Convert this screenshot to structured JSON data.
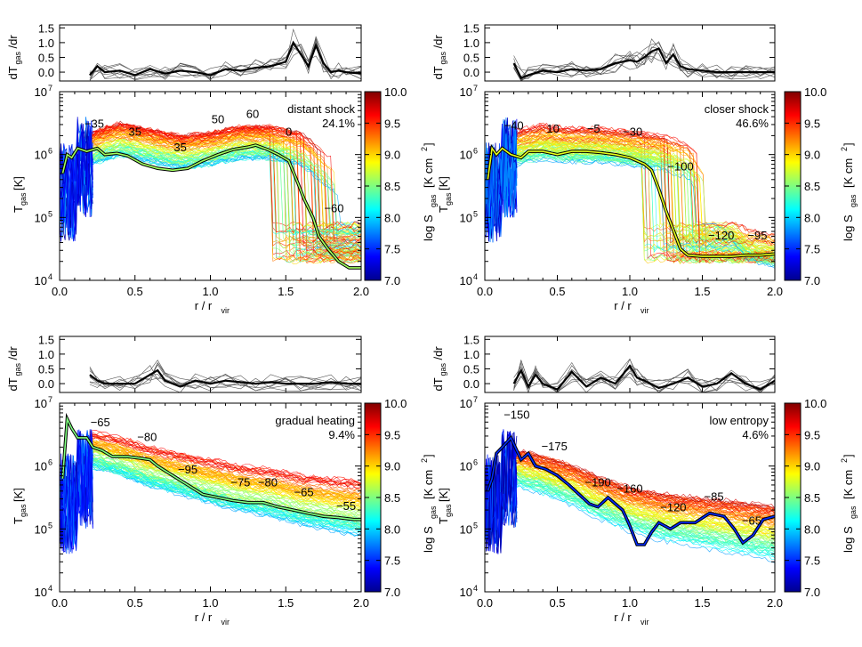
{
  "chart_data": [
    {
      "type": "line",
      "panel": "top-left",
      "label": "distant shock",
      "fraction": "24.1%",
      "xlabel_main": "r / r",
      "xlabel_sub": "vir",
      "ylabel_main": "T",
      "ylabel_sub": "gas",
      "ylabel_unit": "[K]",
      "deriv_label_main": "dT",
      "deriv_label_sub": "gas",
      "deriv_label_tail": "/dr",
      "cbar_label_main": "log S",
      "cbar_label_sub": "gas",
      "cbar_label_unit": "[K cm",
      "cbar_label_sup": "2",
      "cbar_label_close": "]",
      "xlim": [
        0,
        2
      ],
      "xticks": [
        "0.0",
        "0.5",
        "1.0",
        "1.5",
        "2.0"
      ],
      "ylim": [
        10000,
        10000000
      ],
      "yscale": "log",
      "yticks": [
        "10",
        "10",
        "10",
        "10"
      ],
      "ytick_exps": [
        "4",
        "5",
        "6",
        "7"
      ],
      "deriv_ylim": [
        -0.3,
        1.6
      ],
      "deriv_yticks": [
        "0.0",
        "0.5",
        "1.0",
        "1.5"
      ],
      "cbar_range": [
        7.0,
        10.0
      ],
      "cbar_ticks": [
        "7.0",
        "7.5",
        "8.0",
        "8.5",
        "9.0",
        "9.5",
        "10.0"
      ],
      "median_x": [
        0.02,
        0.05,
        0.08,
        0.12,
        0.18,
        0.25,
        0.3,
        0.38,
        0.45,
        0.55,
        0.65,
        0.75,
        0.85,
        0.95,
        1.05,
        1.15,
        1.25,
        1.3,
        1.38,
        1.45,
        1.52,
        1.58,
        1.62,
        1.68,
        1.72,
        1.78,
        1.85,
        1.92,
        2.0
      ],
      "median_logT": [
        5.7,
        6.0,
        5.95,
        6.1,
        6.05,
        6.1,
        6.0,
        6.02,
        5.98,
        5.85,
        5.78,
        5.75,
        5.78,
        5.9,
        6.0,
        6.08,
        6.12,
        6.15,
        6.08,
        6.0,
        5.9,
        5.55,
        5.3,
        5.0,
        4.7,
        4.5,
        4.3,
        4.2,
        4.2
      ],
      "median_S": 8.6,
      "deriv_x": [
        0.2,
        0.25,
        0.3,
        0.4,
        0.5,
        0.6,
        0.7,
        0.8,
        0.9,
        1.0,
        1.1,
        1.2,
        1.3,
        1.4,
        1.5,
        1.55,
        1.6,
        1.65,
        1.7,
        1.75,
        1.8,
        1.85,
        1.9,
        2.0
      ],
      "deriv_y": [
        -0.1,
        0.2,
        0.0,
        0.05,
        -0.1,
        0.1,
        -0.05,
        0.05,
        0.0,
        -0.1,
        0.1,
        0.05,
        0.15,
        0.2,
        0.35,
        1.0,
        0.6,
        0.2,
        0.9,
        0.3,
        0.0,
        0.05,
        0.0,
        -0.05
      ],
      "annotations": [
        {
          "text": "-35",
          "x": 0.23,
          "logT": 6.43
        },
        {
          "text": "35",
          "x": 0.5,
          "logT": 6.3
        },
        {
          "text": "35",
          "x": 0.8,
          "logT": 6.05
        },
        {
          "text": "50",
          "x": 1.05,
          "logT": 6.5
        },
        {
          "text": "60",
          "x": 1.28,
          "logT": 6.58
        },
        {
          "text": "0",
          "x": 1.52,
          "logT": 6.3
        },
        {
          "text": "-60",
          "x": 1.82,
          "logT": 5.08
        }
      ],
      "bundle_center": [
        6.1,
        6.25,
        6.15,
        6.05,
        6.1,
        6.2,
        6.2,
        6.1,
        5.7,
        5.4
      ],
      "bundle_drop_x": 1.62
    },
    {
      "type": "line",
      "panel": "top-right",
      "label": "closer shock",
      "fraction": "46.6%",
      "xlabel_main": "r / r",
      "xlabel_sub": "vir",
      "ylabel_main": "T",
      "ylabel_sub": "gas",
      "ylabel_unit": "[K]",
      "deriv_label_main": "dT",
      "deriv_label_sub": "gas",
      "deriv_label_tail": "/dr",
      "cbar_label_main": "log S",
      "cbar_label_sub": "gas",
      "cbar_label_unit": "[K cm",
      "cbar_label_sup": "2",
      "cbar_label_close": "]",
      "xlim": [
        0,
        2
      ],
      "xticks": [
        "0.0",
        "0.5",
        "1.0",
        "1.5",
        "2.0"
      ],
      "ylim": [
        10000,
        10000000
      ],
      "yscale": "log",
      "yticks": [
        "10",
        "10",
        "10",
        "10"
      ],
      "ytick_exps": [
        "4",
        "5",
        "6",
        "7"
      ],
      "deriv_ylim": [
        -0.3,
        1.6
      ],
      "deriv_yticks": [
        "0.0",
        "0.5",
        "1.0",
        "1.5"
      ],
      "cbar_range": [
        7.0,
        10.0
      ],
      "cbar_ticks": [
        "7.0",
        "7.5",
        "8.0",
        "8.5",
        "9.0",
        "9.5",
        "10.0"
      ],
      "median_x": [
        0.02,
        0.05,
        0.08,
        0.12,
        0.18,
        0.25,
        0.3,
        0.4,
        0.5,
        0.6,
        0.7,
        0.8,
        0.9,
        1.0,
        1.1,
        1.15,
        1.2,
        1.25,
        1.3,
        1.35,
        1.4,
        1.5,
        1.6,
        1.7,
        1.8,
        1.9,
        2.0
      ],
      "median_logT": [
        5.6,
        6.1,
        6.0,
        6.1,
        6.0,
        5.95,
        6.05,
        6.05,
        6.0,
        6.05,
        6.05,
        6.03,
        6.0,
        5.95,
        5.85,
        5.75,
        5.45,
        5.1,
        4.8,
        4.5,
        4.4,
        4.38,
        4.38,
        4.38,
        4.4,
        4.4,
        4.42
      ],
      "median_S": 8.8,
      "deriv_x": [
        0.2,
        0.25,
        0.3,
        0.4,
        0.5,
        0.6,
        0.7,
        0.8,
        0.9,
        1.0,
        1.05,
        1.1,
        1.15,
        1.2,
        1.25,
        1.3,
        1.35,
        1.4,
        1.5,
        1.6,
        1.7,
        1.8,
        1.9,
        2.0
      ],
      "deriv_y": [
        0.3,
        -0.2,
        -0.1,
        0.05,
        0.0,
        0.1,
        0.05,
        0.1,
        0.3,
        0.4,
        0.35,
        0.5,
        0.7,
        0.8,
        0.3,
        0.6,
        0.2,
        0.1,
        0.05,
        0.0,
        0.0,
        0.0,
        0.0,
        0.0
      ],
      "annotations": [
        {
          "text": "-40",
          "x": 0.2,
          "logT": 6.4
        },
        {
          "text": "10",
          "x": 0.47,
          "logT": 6.35
        },
        {
          "text": "-5",
          "x": 0.75,
          "logT": 6.35
        },
        {
          "text": "-30",
          "x": 1.02,
          "logT": 6.3
        },
        {
          "text": "-100",
          "x": 1.35,
          "logT": 5.75
        },
        {
          "text": "-120",
          "x": 1.63,
          "logT": 4.65
        },
        {
          "text": "-95",
          "x": 1.88,
          "logT": 4.65
        }
      ],
      "bundle_center": [
        6.1,
        6.2,
        6.15,
        6.15,
        6.1,
        6.05,
        5.9,
        5.3,
        4.6,
        4.5
      ],
      "bundle_drop_x": 1.3
    },
    {
      "type": "line",
      "panel": "bottom-left",
      "label": "gradual heating",
      "fraction": "9.4%",
      "xlabel_main": "r / r",
      "xlabel_sub": "vir",
      "ylabel_main": "T",
      "ylabel_sub": "gas",
      "ylabel_unit": "[K]",
      "deriv_label_main": "dT",
      "deriv_label_sub": "gas",
      "deriv_label_tail": "/dr",
      "cbar_label_main": "log S",
      "cbar_label_sub": "gas",
      "cbar_label_unit": "[K cm",
      "cbar_label_sup": "2",
      "cbar_label_close": "]",
      "xlim": [
        0,
        2
      ],
      "xticks": [
        "0.0",
        "0.5",
        "1.0",
        "1.5",
        "2.0"
      ],
      "ylim": [
        10000,
        10000000
      ],
      "yscale": "log",
      "yticks": [
        "10",
        "10",
        "10",
        "10"
      ],
      "ytick_exps": [
        "4",
        "5",
        "6",
        "7"
      ],
      "deriv_ylim": [
        -0.3,
        1.6
      ],
      "deriv_yticks": [
        "0.0",
        "0.5",
        "1.0",
        "1.5"
      ],
      "cbar_range": [
        7.0,
        10.0
      ],
      "cbar_ticks": [
        "7.0",
        "7.5",
        "8.0",
        "8.5",
        "9.0",
        "9.5",
        "10.0"
      ],
      "median_x": [
        0.02,
        0.05,
        0.08,
        0.12,
        0.18,
        0.22,
        0.28,
        0.35,
        0.45,
        0.55,
        0.6,
        0.65,
        0.75,
        0.85,
        0.95,
        1.05,
        1.15,
        1.25,
        1.35,
        1.45,
        1.55,
        1.65,
        1.75,
        1.85,
        1.95,
        2.0
      ],
      "median_logT": [
        5.8,
        6.75,
        6.6,
        6.45,
        6.45,
        6.3,
        6.25,
        6.15,
        6.15,
        6.12,
        6.1,
        6.0,
        5.85,
        5.7,
        5.55,
        5.5,
        5.45,
        5.42,
        5.42,
        5.35,
        5.3,
        5.25,
        5.2,
        5.18,
        5.15,
        5.15
      ],
      "median_S": 8.5,
      "deriv_x": [
        0.2,
        0.25,
        0.3,
        0.4,
        0.5,
        0.6,
        0.65,
        0.7,
        0.8,
        0.9,
        1.0,
        1.1,
        1.2,
        1.3,
        1.4,
        1.5,
        1.6,
        1.7,
        1.8,
        1.9,
        2.0
      ],
      "deriv_y": [
        0.3,
        0.1,
        0.0,
        0.0,
        0.0,
        0.3,
        0.45,
        0.1,
        -0.1,
        0.1,
        0.0,
        0.1,
        0.05,
        0.0,
        0.05,
        0.0,
        0.0,
        0.0,
        0.05,
        0.0,
        0.0
      ],
      "annotations": [
        {
          "text": "-65",
          "x": 0.27,
          "logT": 6.63
        },
        {
          "text": "-80",
          "x": 0.58,
          "logT": 6.4
        },
        {
          "text": "-95",
          "x": 0.85,
          "logT": 5.88
        },
        {
          "text": "-75",
          "x": 1.2,
          "logT": 5.68
        },
        {
          "text": "-80",
          "x": 1.38,
          "logT": 5.68
        },
        {
          "text": "-65",
          "x": 1.62,
          "logT": 5.52
        },
        {
          "text": "-55",
          "x": 1.9,
          "logT": 5.3
        }
      ],
      "bundle_center": [
        6.3,
        6.2,
        6.05,
        5.95,
        5.85,
        5.75,
        5.7,
        5.6,
        5.55,
        5.5
      ],
      "bundle_drop_x": 2.5
    },
    {
      "type": "line",
      "panel": "bottom-right",
      "label": "low entropy",
      "fraction": "4.6%",
      "xlabel_main": "r / r",
      "xlabel_sub": "vir",
      "ylabel_main": "T",
      "ylabel_sub": "gas",
      "ylabel_unit": "[K]",
      "deriv_label_main": "dT",
      "deriv_label_sub": "gas",
      "deriv_label_tail": "/dr",
      "cbar_label_main": "log S",
      "cbar_label_sub": "gas",
      "cbar_label_unit": "[K cm",
      "cbar_label_sup": "2",
      "cbar_label_close": "]",
      "xlim": [
        0,
        2
      ],
      "xticks": [
        "0.0",
        "0.5",
        "1.0",
        "1.5",
        "2.0"
      ],
      "ylim": [
        10000,
        10000000
      ],
      "yscale": "log",
      "yticks": [
        "10",
        "10",
        "10",
        "10"
      ],
      "ytick_exps": [
        "4",
        "5",
        "6",
        "7"
      ],
      "deriv_ylim": [
        -0.3,
        1.6
      ],
      "deriv_yticks": [
        "0.0",
        "0.5",
        "1.0",
        "1.5"
      ],
      "cbar_range": [
        7.0,
        10.0
      ],
      "cbar_ticks": [
        "7.0",
        "7.5",
        "8.0",
        "8.5",
        "9.0",
        "9.5",
        "10.0"
      ],
      "median_x": [
        0.02,
        0.05,
        0.08,
        0.12,
        0.18,
        0.25,
        0.3,
        0.35,
        0.42,
        0.5,
        0.58,
        0.65,
        0.72,
        0.78,
        0.85,
        0.9,
        0.95,
        1.0,
        1.05,
        1.1,
        1.15,
        1.2,
        1.28,
        1.35,
        1.45,
        1.55,
        1.65,
        1.72,
        1.78,
        1.85,
        1.92,
        2.0
      ],
      "median_logT": [
        5.6,
        5.8,
        6.2,
        6.3,
        6.45,
        6.1,
        6.2,
        6.0,
        5.95,
        5.85,
        5.7,
        5.55,
        5.4,
        5.35,
        5.5,
        5.4,
        5.3,
        5.05,
        4.75,
        4.75,
        4.95,
        5.1,
        5.0,
        5.1,
        5.1,
        5.25,
        5.2,
        5.0,
        4.78,
        4.9,
        5.15,
        5.2
      ],
      "median_S": 7.5,
      "deriv_x": [
        0.2,
        0.25,
        0.3,
        0.35,
        0.4,
        0.5,
        0.6,
        0.7,
        0.8,
        0.9,
        1.0,
        1.05,
        1.1,
        1.2,
        1.3,
        1.4,
        1.5,
        1.6,
        1.7,
        1.8,
        1.9,
        2.0
      ],
      "deriv_y": [
        0.0,
        0.45,
        -0.1,
        0.3,
        0.0,
        -0.2,
        0.4,
        -0.1,
        0.2,
        0.0,
        0.6,
        0.2,
        0.1,
        -0.15,
        0.0,
        0.2,
        -0.1,
        0.0,
        0.35,
        0.0,
        -0.2,
        0.1
      ],
      "annotations": [
        {
          "text": "-150",
          "x": 0.22,
          "logT": 6.75
        },
        {
          "text": "-175",
          "x": 0.48,
          "logT": 6.25
        },
        {
          "text": "-190",
          "x": 0.78,
          "logT": 5.68
        },
        {
          "text": "-160",
          "x": 1.0,
          "logT": 5.58
        },
        {
          "text": "-120",
          "x": 1.3,
          "logT": 5.28
        },
        {
          "text": "-85",
          "x": 1.58,
          "logT": 5.45
        },
        {
          "text": "-65",
          "x": 1.84,
          "logT": 5.07
        }
      ],
      "bundle_center": [
        6.0,
        5.9,
        5.75,
        5.55,
        5.4,
        5.3,
        5.25,
        5.2,
        5.15,
        5.1
      ],
      "bundle_drop_x": 2.5
    }
  ]
}
